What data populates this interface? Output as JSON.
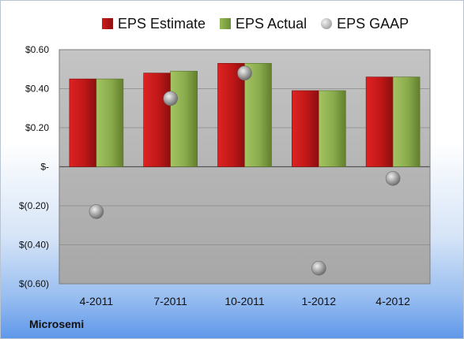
{
  "company": "Microsemi",
  "legend": {
    "estimate": "EPS Estimate",
    "actual": "EPS Actual",
    "gaap": "EPS GAAP"
  },
  "colors": {
    "estimate": "#c31818",
    "actual": "#8bab4e",
    "gaap": "#a6a6a6",
    "plot_bg": "#b3b3b3"
  },
  "chart_data": {
    "type": "bar",
    "categories": [
      "4-2011",
      "7-2011",
      "10-2011",
      "1-2012",
      "4-2012"
    ],
    "series": [
      {
        "name": "EPS Estimate",
        "type": "bar",
        "values": [
          0.45,
          0.48,
          0.53,
          0.39,
          0.46
        ]
      },
      {
        "name": "EPS Actual",
        "type": "bar",
        "values": [
          0.45,
          0.49,
          0.53,
          0.39,
          0.46
        ]
      },
      {
        "name": "EPS GAAP",
        "type": "scatter",
        "values": [
          -0.23,
          0.35,
          0.48,
          -0.52,
          -0.06
        ]
      }
    ],
    "ylim": [
      -0.6,
      0.6
    ],
    "yticks": [
      0.6,
      0.4,
      0.2,
      0,
      -0.2,
      -0.4,
      -0.6
    ],
    "ytick_labels": [
      "$0.60",
      "$0.40",
      "$0.20",
      "$-",
      "$(0.20)",
      "$(0.40)",
      "$(0.60)"
    ],
    "grid": true,
    "legend_position": "top"
  }
}
